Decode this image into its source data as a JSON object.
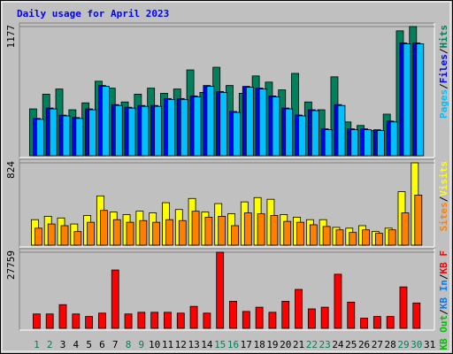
{
  "chart_data": [
    {
      "type": "bar",
      "title": "Daily usage for April 2023",
      "ylim": [
        0,
        1177
      ],
      "yticks": [
        1177
      ],
      "separator": "/",
      "series": [
        {
          "name": "Hits",
          "color": "#00805c",
          "values": [
            427,
            561,
            608,
            419,
            482,
            679,
            616,
            490,
            561,
            616,
            569,
            608,
            782,
            577,
            806,
            640,
            569,
            727,
            671,
            600,
            750,
            490,
            419,
            719,
            308,
            276,
            229,
            379,
            1138,
            1177,
            0
          ]
        },
        {
          "name": "Files",
          "color": "#0000ff",
          "values": [
            340,
            435,
            370,
            348,
            427,
            640,
            466,
            442,
            458,
            458,
            521,
            521,
            545,
            640,
            585,
            403,
            632,
            616,
            545,
            435,
            371,
            419,
            245,
            466,
            245,
            245,
            237,
            316,
            1027,
            1027,
            0
          ]
        },
        {
          "name": "Pages",
          "color": "#00c0ff",
          "values": [
            332,
            427,
            363,
            340,
            419,
            632,
            458,
            434,
            450,
            450,
            513,
            513,
            537,
            632,
            577,
            395,
            624,
            608,
            537,
            427,
            363,
            411,
            237,
            458,
            237,
            237,
            229,
            308,
            1019,
            1019,
            0
          ]
        }
      ]
    },
    {
      "type": "bar",
      "ylim": [
        0,
        824
      ],
      "yticks": [
        824
      ],
      "separator": "/",
      "series": [
        {
          "name": "Visits",
          "color": "#ffff00",
          "values": [
            255,
            289,
            272,
            212,
            297,
            493,
            331,
            306,
            340,
            323,
            425,
            357,
            467,
            331,
            416,
            314,
            433,
            476,
            459,
            306,
            280,
            255,
            255,
            178,
            170,
            195,
            136,
            170,
            535,
            824,
            0
          ]
        },
        {
          "name": "Sites",
          "color": "#ff8000",
          "values": [
            170,
            212,
            195,
            136,
            229,
            348,
            255,
            229,
            246,
            229,
            255,
            246,
            340,
            280,
            289,
            195,
            323,
            314,
            297,
            238,
            229,
            204,
            187,
            153,
            127,
            153,
            119,
            153,
            323,
            501,
            0
          ]
        }
      ]
    },
    {
      "type": "bar",
      "ylim": [
        0,
        27759
      ],
      "yticks": [
        27759
      ],
      "separator": "/",
      "categories": [
        "1",
        "2",
        "3",
        "4",
        "5",
        "6",
        "7",
        "8",
        "9",
        "10",
        "11",
        "12",
        "13",
        "14",
        "15",
        "16",
        "17",
        "18",
        "19",
        "20",
        "21",
        "22",
        "23",
        "24",
        "25",
        "26",
        "27",
        "28",
        "29",
        "30",
        "31"
      ],
      "weekend_color": "#00805c",
      "weekend": [
        0,
        1,
        7,
        8,
        14,
        15,
        21,
        22,
        28,
        29
      ],
      "series": [
        {
          "name": "KB F",
          "color": "#ff0000",
          "values": [
            5243,
            5243,
            8636,
            5243,
            4318,
            5552,
            21282,
            5243,
            5860,
            5860,
            5860,
            5552,
            8019,
            5552,
            27759,
            9870,
            6169,
            7711,
            5860,
            9870,
            14188,
            7094,
            7711,
            19740,
            9561,
            3701,
            4318,
            4318,
            15113,
            9253,
            0
          ]
        },
        {
          "name": "KB In",
          "color": "#0080ff"
        },
        {
          "name": "KB Out",
          "color": "#00c000"
        }
      ]
    }
  ]
}
